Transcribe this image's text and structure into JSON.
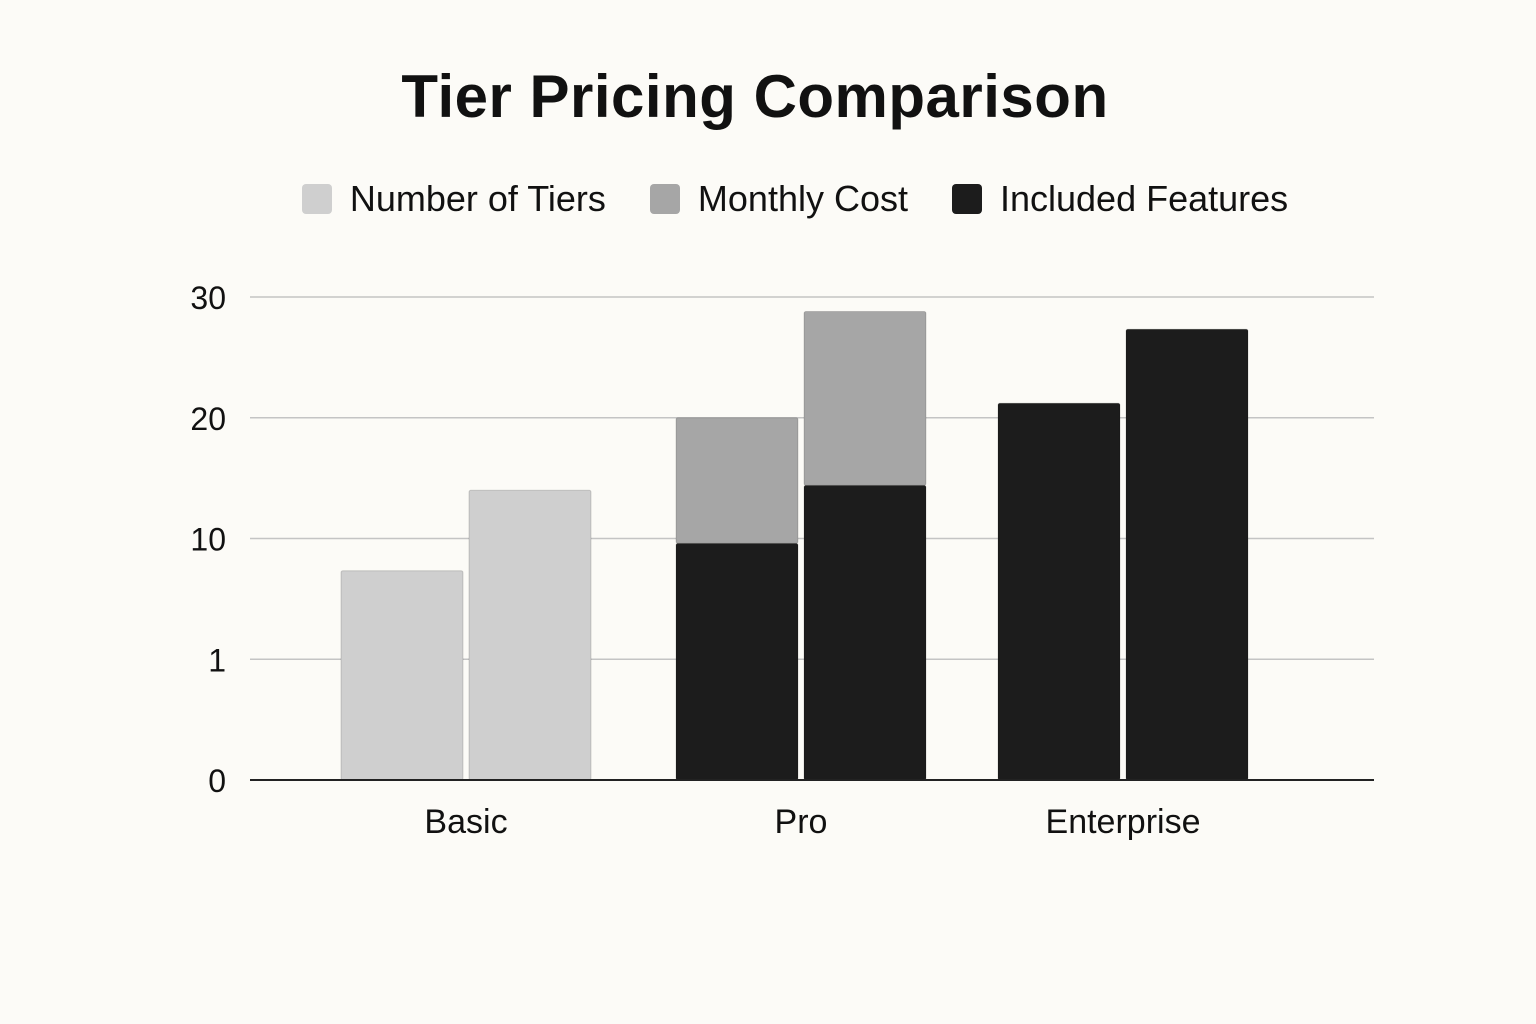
{
  "chart_data": {
    "type": "bar",
    "title": "Tier Pricing Comparison",
    "categories": [
      "Basic",
      "Pro",
      "Enterprise"
    ],
    "series": [
      {
        "name": "Number of Tiers",
        "color": "#cfcfcf"
      },
      {
        "name": "Monthly Cost",
        "color": "#a6a6a6"
      },
      {
        "name": "Included Features",
        "color": "#1c1c1c"
      }
    ],
    "y_ticks": [
      "0",
      "1",
      "10",
      "20",
      "30"
    ],
    "ylim": [
      0,
      30
    ],
    "grid": true,
    "legend_position": "top",
    "bars": [
      {
        "category": "Basic",
        "segments": [
          {
            "series": "Number of Tiers",
            "value": 13
          }
        ]
      },
      {
        "category": "Basic",
        "segments": [
          {
            "series": "Number of Tiers",
            "value": 18
          }
        ]
      },
      {
        "category": "Pro",
        "segments": [
          {
            "series": "Included Features",
            "value": 14.7
          },
          {
            "series": "Monthly Cost",
            "value": 7.8
          }
        ]
      },
      {
        "category": "Pro",
        "segments": [
          {
            "series": "Included Features",
            "value": 18.3
          },
          {
            "series": "Monthly Cost",
            "value": 10.8
          }
        ]
      },
      {
        "category": "Enterprise",
        "segments": [
          {
            "series": "Included Features",
            "value": 23.4
          }
        ]
      },
      {
        "category": "Enterprise",
        "segments": [
          {
            "series": "Included Features",
            "value": 28
          }
        ]
      }
    ]
  }
}
